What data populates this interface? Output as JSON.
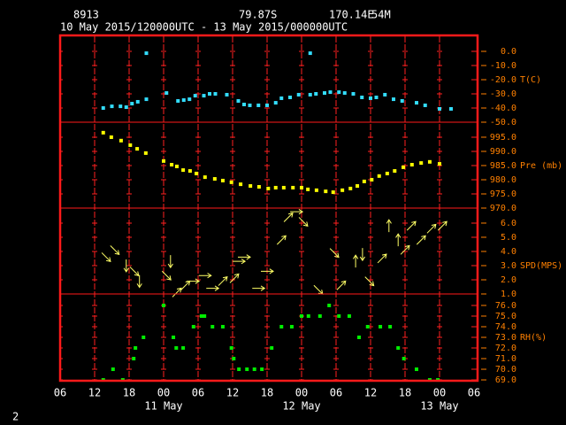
{
  "header": {
    "station": "8913",
    "lat": "79.87S",
    "lon": "170.14E",
    "elev": "54M",
    "period": "10 May 2015/120000UTC - 13 May 2015/000000UTC",
    "frame": "2"
  },
  "chart_data": [
    {
      "type": "scatter",
      "ylabel": "T(C)",
      "color": "#33ddff",
      "ylim": [
        -50,
        11.25
      ],
      "yticks": [
        {
          "value": 0,
          "label": "0.0"
        },
        {
          "value": -10,
          "label": "-10.0"
        },
        {
          "value": -20,
          "label": "-20.0"
        },
        {
          "value": -30,
          "label": "-30.0"
        },
        {
          "value": -40,
          "label": "-40.0"
        },
        {
          "value": -50,
          "label": "-50.0"
        }
      ],
      "x": [
        13.5,
        15,
        16.5,
        17.5,
        18.5,
        19.5,
        21,
        21,
        24.5,
        26.5,
        27.5,
        28.5,
        29.5,
        31,
        32,
        33,
        35,
        37,
        38,
        39,
        40.5,
        42,
        43.5,
        44.5,
        46,
        47.5,
        49.5,
        49.5,
        50.5,
        52,
        53,
        54.5,
        55.5,
        57,
        58.5,
        60,
        61,
        62.5,
        64,
        65.5,
        68,
        69.5,
        72,
        74
      ],
      "values": [
        -40,
        -38.8,
        -38.8,
        -39.4,
        -36.9,
        -35.6,
        -33.8,
        -1.3,
        -29.4,
        -35,
        -34.4,
        -33.8,
        -31.3,
        -31.3,
        -30,
        -30,
        -30.6,
        -35,
        -37.5,
        -38.1,
        -38.1,
        -38.1,
        -36.3,
        -33.1,
        -32.5,
        -30.6,
        -30.6,
        -1.3,
        -30,
        -29.4,
        -28.8,
        -28.8,
        -29.4,
        -30,
        -32.5,
        -33.1,
        -32.5,
        -30.6,
        -33.8,
        -35,
        -36.3,
        -38.1,
        -40.6,
        -40.6
      ]
    },
    {
      "type": "scatter",
      "ylabel": "Pre (mb)",
      "color": "#ffff00",
      "ylim": [
        970,
        1000.3
      ],
      "yticks": [
        {
          "value": 995,
          "label": "995.0"
        },
        {
          "value": 990,
          "label": "990.0"
        },
        {
          "value": 985,
          "label": "985.0"
        },
        {
          "value": 980,
          "label": "980.0"
        },
        {
          "value": 975,
          "label": "975.0"
        },
        {
          "value": 970,
          "label": "970.0"
        }
      ],
      "x": [
        13.5,
        14.9,
        16.6,
        18.2,
        19.4,
        20.9,
        24,
        25.4,
        26.3,
        27.4,
        28.6,
        29.7,
        31.2,
        32.9,
        34.3,
        35.8,
        37.4,
        39.1,
        40.6,
        42.2,
        43.5,
        44.9,
        46.5,
        48,
        49.1,
        50.6,
        52.2,
        53.5,
        55.1,
        56.5,
        57.7,
        58.9,
        60.2,
        61.5,
        62.9,
        64.2,
        65.7,
        67.2,
        68.8,
        70.3,
        72
      ],
      "values": [
        996.6,
        995,
        993.8,
        992.2,
        990.9,
        989.4,
        986.6,
        985.3,
        984.7,
        983.4,
        983.1,
        982.2,
        980.9,
        980.3,
        979.7,
        979.1,
        978.4,
        977.8,
        977.5,
        976.9,
        977.2,
        977.2,
        977.2,
        977.2,
        976.6,
        976.3,
        975.9,
        975.6,
        976.3,
        976.9,
        977.8,
        979.4,
        980,
        981.3,
        982.2,
        983.1,
        984.4,
        985.3,
        985.9,
        986.3,
        985.6
      ]
    },
    {
      "type": "quiver",
      "ylabel": "SPD(MPS)",
      "color": "#ffff66",
      "ylim": [
        1,
        7.06
      ],
      "yticks": [
        {
          "value": 6,
          "label": "6.0"
        },
        {
          "value": 5,
          "label": "5.0"
        },
        {
          "value": 4,
          "label": "4.0"
        },
        {
          "value": 3,
          "label": "3.0"
        },
        {
          "value": 2,
          "label": "2.0"
        },
        {
          "value": 1,
          "label": "1.0"
        }
      ],
      "x": [
        14,
        15.5,
        17.5,
        18.9,
        19.8,
        24.5,
        25.2,
        26.3,
        27.8,
        29.1,
        31.2,
        32.5,
        34.3,
        36.3,
        37.1,
        38,
        40.5,
        42,
        44.5,
        45.7,
        47.1,
        48.3,
        50.9,
        53.7,
        54.9,
        57.4,
        58.6,
        59.8,
        62,
        63.2,
        64.8,
        66,
        67.1,
        68.8,
        70.6,
        72.5
      ],
      "values": [
        3.6,
        4.1,
        3,
        2.6,
        1.9,
        2.3,
        3.3,
        1.1,
        1.6,
        1.9,
        2.3,
        1.4,
        1.9,
        2.1,
        3.3,
        3.6,
        1.4,
        2.6,
        4.8,
        6.4,
        6.8,
        6.1,
        1.3,
        3.9,
        1.6,
        3.3,
        3.8,
        1.9,
        3.5,
        5.8,
        4.8,
        4.1,
        5.8,
        4.8,
        5.6,
        5.8
      ],
      "directions": [
        135,
        135,
        180,
        135,
        180,
        135,
        180,
        45,
        45,
        90,
        90,
        90,
        45,
        45,
        90,
        90,
        90,
        90,
        45,
        45,
        90,
        135,
        135,
        135,
        45,
        0,
        180,
        135,
        45,
        0,
        0,
        45,
        45,
        45,
        45,
        45
      ]
    },
    {
      "type": "scatter",
      "ylabel": "RH(%)",
      "color": "#00ee00",
      "ylim": [
        68.92,
        77.08
      ],
      "yticks": [
        {
          "value": 76,
          "label": "76.0"
        },
        {
          "value": 75,
          "label": "75.0"
        },
        {
          "value": 74,
          "label": "74.0"
        },
        {
          "value": 73,
          "label": "73.0"
        },
        {
          "value": 72,
          "label": "72.0"
        },
        {
          "value": 71,
          "label": "71.0"
        },
        {
          "value": 70,
          "label": "70.0"
        },
        {
          "value": 69,
          "label": "69.0"
        }
      ],
      "x": [
        13.5,
        15.2,
        16.9,
        18.8,
        19.1,
        20.5,
        24,
        25.7,
        26.2,
        27.4,
        29.2,
        30.6,
        31.1,
        32.5,
        34.3,
        35.8,
        36.2,
        37.1,
        38.5,
        39.8,
        41.1,
        42.8,
        44.5,
        46.3,
        48,
        49.2,
        51.2,
        52.8,
        54.5,
        56.3,
        58,
        59.5,
        61.7,
        63.4,
        64.8,
        65.8,
        68,
        70.3,
        71.7
      ],
      "values": [
        69,
        70,
        69,
        71,
        72,
        73,
        76,
        73,
        72,
        72,
        74,
        75,
        75,
        74,
        74,
        72,
        71,
        70,
        70,
        70,
        70,
        72,
        74,
        74,
        75,
        75,
        75,
        76,
        75,
        75,
        73,
        74,
        74,
        74,
        72,
        71,
        70,
        69,
        69
      ],
      "xlim": [
        6,
        78
      ],
      "xticks": [
        {
          "value": 6,
          "label": "06"
        },
        {
          "value": 12,
          "label": "12"
        },
        {
          "value": 18,
          "label": "18"
        },
        {
          "value": 24,
          "label": "00"
        },
        {
          "value": 30,
          "label": "06"
        },
        {
          "value": 36,
          "label": "12"
        },
        {
          "value": 42,
          "label": "18"
        },
        {
          "value": 48,
          "label": "00"
        },
        {
          "value": 54,
          "label": "06"
        },
        {
          "value": 60,
          "label": "12"
        },
        {
          "value": 66,
          "label": "18"
        },
        {
          "value": 72,
          "label": "00"
        },
        {
          "value": 78,
          "label": "06"
        }
      ],
      "day_labels": [
        {
          "value": 24,
          "label": "11 May"
        },
        {
          "value": 48,
          "label": "12 May"
        },
        {
          "value": 72,
          "label": "13 May"
        }
      ]
    }
  ]
}
